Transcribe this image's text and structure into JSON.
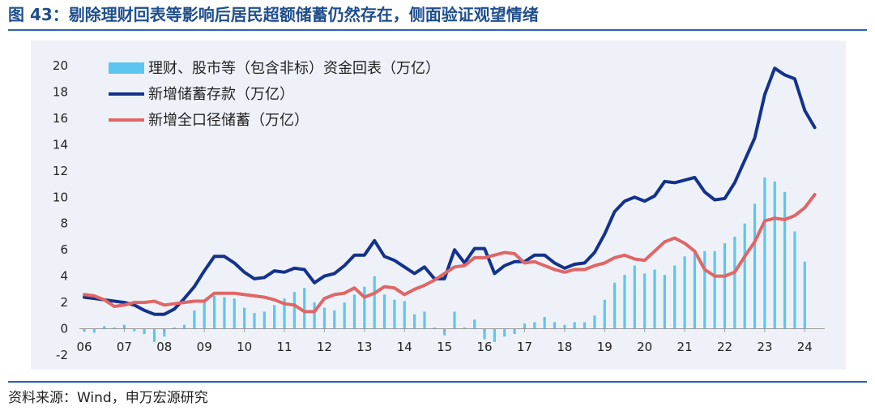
{
  "title": "图 43：剔除理财回表等影响后居民超额储蓄仍然存在，侧面验证观望情绪",
  "source": "资料来源：Wind，申万宏源研究",
  "chart_data": {
    "type": "bar+line",
    "ylim": [
      -2,
      20
    ],
    "yticks": [
      -2,
      0,
      2,
      4,
      6,
      8,
      10,
      12,
      14,
      16,
      18,
      20
    ],
    "xlim": [
      2006,
      2024.5
    ],
    "xtick_labels": [
      "06",
      "07",
      "08",
      "09",
      "10",
      "11",
      "12",
      "13",
      "14",
      "15",
      "16",
      "17",
      "18",
      "19",
      "20",
      "21",
      "22",
      "23",
      "24"
    ],
    "legend_position": "top-left",
    "grid": false,
    "series": [
      {
        "name": "理财、股市等（包含非标）资金回表（万亿）",
        "kind": "bar",
        "color": "#5cc6f0",
        "x": [
          2006.0,
          2006.25,
          2006.5,
          2006.75,
          2007.0,
          2007.25,
          2007.5,
          2007.75,
          2008.0,
          2008.25,
          2008.5,
          2008.75,
          2009.0,
          2009.25,
          2009.5,
          2009.75,
          2010.0,
          2010.25,
          2010.5,
          2010.75,
          2011.0,
          2011.25,
          2011.5,
          2011.75,
          2012.0,
          2012.25,
          2012.5,
          2012.75,
          2013.0,
          2013.25,
          2013.5,
          2013.75,
          2014.0,
          2014.25,
          2014.5,
          2014.75,
          2015.0,
          2015.25,
          2015.5,
          2015.75,
          2016.0,
          2016.25,
          2016.5,
          2016.75,
          2017.0,
          2017.25,
          2017.5,
          2017.75,
          2018.0,
          2018.25,
          2018.5,
          2018.75,
          2019.0,
          2019.25,
          2019.5,
          2019.75,
          2020.0,
          2020.25,
          2020.5,
          2020.75,
          2021.0,
          2021.25,
          2021.5,
          2021.75,
          2022.0,
          2022.25,
          2022.5,
          2022.75,
          2023.0,
          2023.25,
          2023.5,
          2023.75,
          2024.0,
          2024.25
        ],
        "values": [
          -0.2,
          -0.3,
          0.2,
          0.1,
          0.3,
          -0.2,
          -0.4,
          -1.0,
          -0.6,
          0.1,
          0.3,
          1.4,
          2.1,
          2.5,
          2.4,
          2.3,
          1.6,
          1.2,
          1.3,
          1.8,
          2.3,
          2.8,
          3.1,
          2.0,
          1.6,
          1.4,
          2.0,
          2.6,
          3.2,
          4.0,
          2.6,
          2.2,
          2.1,
          1.1,
          1.3,
          0.1,
          -0.5,
          1.3,
          0.1,
          0.7,
          -0.8,
          -1.0,
          -0.6,
          -0.4,
          0.4,
          0.5,
          0.9,
          0.5,
          0.3,
          0.5,
          0.5,
          1.0,
          2.2,
          3.5,
          4.1,
          4.8,
          4.2,
          4.5,
          4.1,
          4.8,
          5.5,
          5.8,
          5.9,
          5.9,
          6.5,
          7.0,
          8.0,
          9.5,
          11.5,
          11.2,
          10.4,
          7.4,
          5.1,
          0.0
        ]
      },
      {
        "name": "新增储蓄存款（万亿）",
        "kind": "line",
        "color": "#14328c",
        "x": [
          2006.0,
          2006.25,
          2006.5,
          2006.75,
          2007.0,
          2007.25,
          2007.5,
          2007.75,
          2008.0,
          2008.25,
          2008.5,
          2008.75,
          2009.0,
          2009.25,
          2009.5,
          2009.75,
          2010.0,
          2010.25,
          2010.5,
          2010.75,
          2011.0,
          2011.25,
          2011.5,
          2011.75,
          2012.0,
          2012.25,
          2012.5,
          2012.75,
          2013.0,
          2013.25,
          2013.5,
          2013.75,
          2014.0,
          2014.25,
          2014.5,
          2014.75,
          2015.0,
          2015.25,
          2015.5,
          2015.75,
          2016.0,
          2016.25,
          2016.5,
          2016.75,
          2017.0,
          2017.25,
          2017.5,
          2017.75,
          2018.0,
          2018.25,
          2018.5,
          2018.75,
          2019.0,
          2019.25,
          2019.5,
          2019.75,
          2020.0,
          2020.25,
          2020.5,
          2020.75,
          2021.0,
          2021.25,
          2021.5,
          2021.75,
          2022.0,
          2022.25,
          2022.5,
          2022.75,
          2023.0,
          2023.25,
          2023.5,
          2023.75,
          2024.0,
          2024.25
        ],
        "values": [
          2.4,
          2.3,
          2.2,
          2.1,
          2.0,
          1.8,
          1.4,
          1.1,
          1.1,
          1.5,
          2.3,
          3.2,
          4.4,
          5.5,
          5.5,
          5.0,
          4.3,
          3.8,
          3.9,
          4.4,
          4.3,
          4.6,
          4.5,
          3.5,
          4.0,
          4.2,
          4.8,
          5.6,
          5.6,
          6.7,
          5.5,
          5.2,
          4.7,
          4.2,
          4.7,
          3.8,
          3.8,
          6.0,
          5.0,
          6.1,
          6.1,
          4.2,
          4.8,
          5.1,
          5.1,
          5.6,
          5.6,
          5.0,
          4.6,
          4.9,
          5.0,
          5.8,
          7.2,
          8.9,
          9.7,
          10.0,
          9.7,
          10.1,
          11.2,
          11.1,
          11.3,
          11.5,
          10.4,
          9.8,
          9.9,
          11.1,
          12.8,
          14.5,
          17.8,
          19.8,
          19.3,
          19.0,
          16.6,
          15.3
        ]
      },
      {
        "name": "新增全口径储蓄（万亿）",
        "kind": "line",
        "color": "#e06666",
        "x": [
          2006.0,
          2006.25,
          2006.5,
          2006.75,
          2007.0,
          2007.25,
          2007.5,
          2007.75,
          2008.0,
          2008.25,
          2008.5,
          2008.75,
          2009.0,
          2009.25,
          2009.5,
          2009.75,
          2010.0,
          2010.25,
          2010.5,
          2010.75,
          2011.0,
          2011.25,
          2011.5,
          2011.75,
          2012.0,
          2012.25,
          2012.5,
          2012.75,
          2013.0,
          2013.25,
          2013.5,
          2013.75,
          2014.0,
          2014.25,
          2014.5,
          2014.75,
          2015.0,
          2015.25,
          2015.5,
          2015.75,
          2016.0,
          2016.25,
          2016.5,
          2016.75,
          2017.0,
          2017.25,
          2017.5,
          2017.75,
          2018.0,
          2018.25,
          2018.5,
          2018.75,
          2019.0,
          2019.25,
          2019.5,
          2019.75,
          2020.0,
          2020.25,
          2020.5,
          2020.75,
          2021.0,
          2021.25,
          2021.5,
          2021.75,
          2022.0,
          2022.25,
          2022.5,
          2022.75,
          2023.0,
          2023.25,
          2023.5,
          2023.75,
          2024.0,
          2024.25
        ],
        "values": [
          2.6,
          2.5,
          2.2,
          1.7,
          1.8,
          2.0,
          2.0,
          2.1,
          1.8,
          1.9,
          2.0,
          2.1,
          2.1,
          2.7,
          2.7,
          2.7,
          2.6,
          2.5,
          2.4,
          2.2,
          1.9,
          1.8,
          1.3,
          1.3,
          2.3,
          2.6,
          2.7,
          3.1,
          2.4,
          2.7,
          3.2,
          3.1,
          2.6,
          3.0,
          3.3,
          3.7,
          4.2,
          4.7,
          4.8,
          5.4,
          5.4,
          5.6,
          5.8,
          5.7,
          5.0,
          5.1,
          4.8,
          4.5,
          4.3,
          4.5,
          4.5,
          4.8,
          5.0,
          5.4,
          5.6,
          5.3,
          5.2,
          5.9,
          6.6,
          6.9,
          6.5,
          5.9,
          4.5,
          4.0,
          4.0,
          4.3,
          5.5,
          6.6,
          8.2,
          8.4,
          8.3,
          8.6,
          9.2,
          10.2
        ]
      }
    ]
  }
}
